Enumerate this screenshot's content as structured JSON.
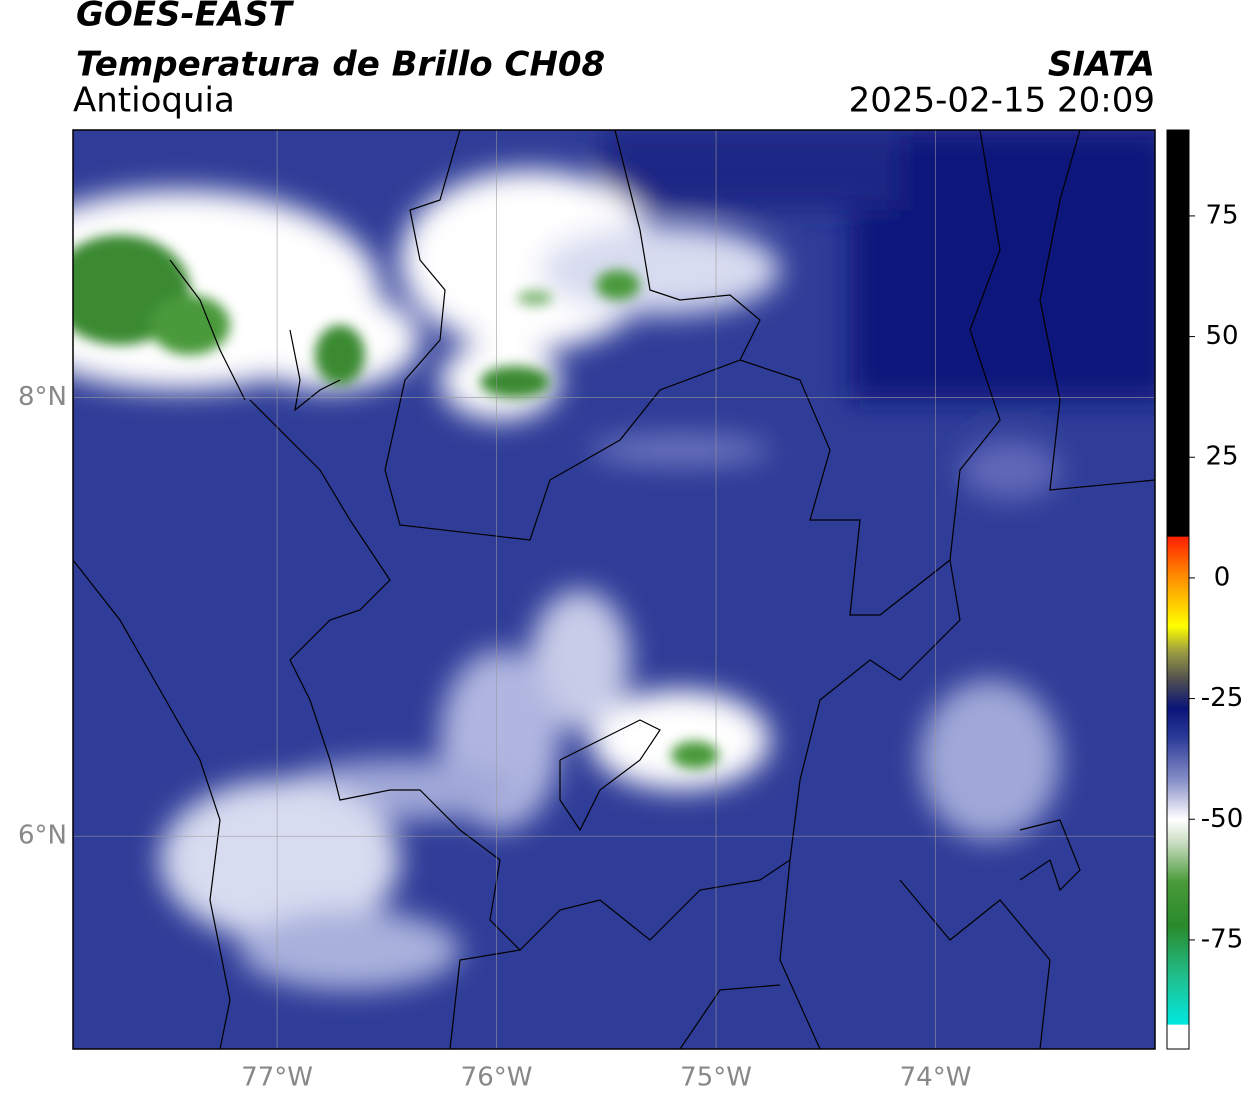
{
  "header": {
    "satellite": "GOES-EAST",
    "product": "Temperatura de Brillo CH08",
    "region": "Antioquia",
    "source": "SIATA",
    "datetime": "2025-02-15 20:09"
  },
  "map": {
    "xlim": [
      -77.93,
      -73.0
    ],
    "ylim": [
      5.03,
      9.22
    ],
    "xticks": [
      {
        "value": -77,
        "label": "77°W"
      },
      {
        "value": -76,
        "label": "76°W"
      },
      {
        "value": -75,
        "label": "75°W"
      },
      {
        "value": -74,
        "label": "74°W"
      }
    ],
    "yticks": [
      {
        "value": 8,
        "label": "8°N"
      },
      {
        "value": 6,
        "label": "6°N"
      }
    ],
    "grid": true
  },
  "colorbar": {
    "lim": [
      -97.6,
      92.8
    ],
    "ticks": [
      75,
      50,
      25,
      0,
      -25,
      -50,
      -75
    ],
    "stops": [
      {
        "value": -97.6,
        "color": "#ffffff"
      },
      {
        "value": -92.6,
        "color": "#ffffff"
      },
      {
        "value": -92.5,
        "color": "#00e8e0"
      },
      {
        "value": -83,
        "color": "#20c090"
      },
      {
        "value": -72,
        "color": "#2a8a2a"
      },
      {
        "value": -63,
        "color": "#4a9a3a"
      },
      {
        "value": -55,
        "color": "#c8dcc0"
      },
      {
        "value": -50,
        "color": "#ffffff"
      },
      {
        "value": -42,
        "color": "#8890c8"
      },
      {
        "value": -33,
        "color": "#2a3a98"
      },
      {
        "value": -27,
        "color": "#0a1478"
      },
      {
        "value": -21,
        "color": "#505050"
      },
      {
        "value": -15,
        "color": "#a0a040"
      },
      {
        "value": -10,
        "color": "#ffff00"
      },
      {
        "value": 0,
        "color": "#ff9000"
      },
      {
        "value": 8.5,
        "color": "#ff2000"
      },
      {
        "value": 8.6,
        "color": "#000000"
      },
      {
        "value": 92.8,
        "color": "#000000"
      }
    ]
  }
}
